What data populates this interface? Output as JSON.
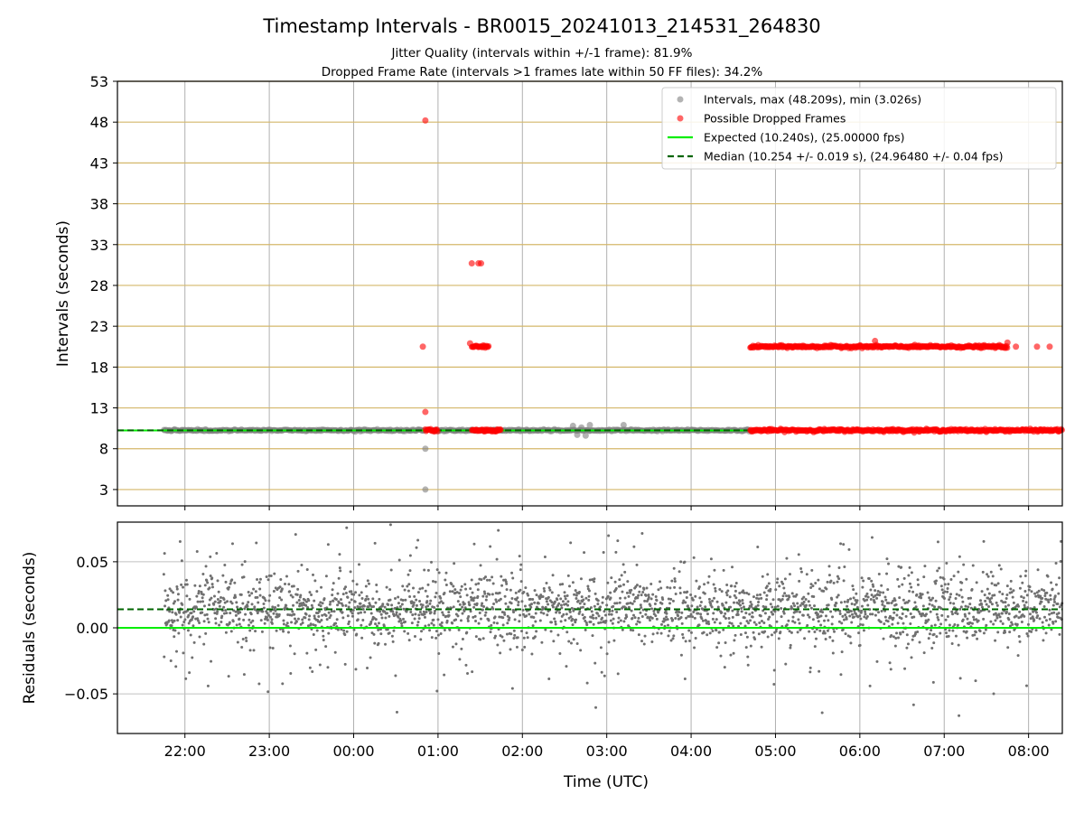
{
  "chart_data": [
    {
      "type": "scatter",
      "panel": "top",
      "title": "Timestamp Intervals - BR0015_20241013_214531_264830",
      "subtitle_lines": [
        "Jitter Quality (intervals within +/-1 frame): 81.9%",
        "Dropped Frame Rate (intervals >1 frames late within 50 FF files): 34.2%"
      ],
      "ylabel": "Intervals (seconds)",
      "xlabel": "",
      "xlim_hours": [
        21.2,
        32.4
      ],
      "ylim": [
        1,
        53
      ],
      "yticks": [
        3,
        8,
        13,
        18,
        23,
        28,
        33,
        38,
        43,
        48,
        53
      ],
      "xticks": [
        {
          "hour": 22,
          "label": "22:00"
        },
        {
          "hour": 23,
          "label": "23:00"
        },
        {
          "hour": 24,
          "label": "00:00"
        },
        {
          "hour": 25,
          "label": "01:00"
        },
        {
          "hour": 26,
          "label": "02:00"
        },
        {
          "hour": 27,
          "label": "03:00"
        },
        {
          "hour": 28,
          "label": "04:00"
        },
        {
          "hour": 29,
          "label": "05:00"
        },
        {
          "hour": 30,
          "label": "06:00"
        },
        {
          "hour": 31,
          "label": "07:00"
        },
        {
          "hour": 32,
          "label": "08:00"
        }
      ],
      "grid": true,
      "legend_position": "upper-right",
      "legend": [
        {
          "label": "Intervals, max (48.209s), min (3.026s)",
          "marker": "circle",
          "color": "#808080"
        },
        {
          "label": "Possible Dropped Frames",
          "marker": "circle",
          "color": "#ff0000"
        },
        {
          "label": "Expected (10.240s), (25.00000 fps)",
          "line": "solid",
          "color": "#00ee00"
        },
        {
          "label": "Median (10.254 +/- 0.019 s), (24.96480 +/- 0.04 fps)",
          "line": "dashed",
          "color": "#006400"
        }
      ],
      "expected_y": 10.24,
      "median_y": 10.254,
      "intervals_normal": {
        "color": "#808080",
        "band_y": 10.254,
        "ranges_hours": [
          [
            21.75,
            24.85
          ],
          [
            24.95,
            28.7
          ]
        ],
        "outliers": [
          {
            "x": 24.85,
            "y": 8.0
          },
          {
            "x": 24.85,
            "y": 3.0
          },
          {
            "x": 26.6,
            "y": 10.8
          },
          {
            "x": 26.7,
            "y": 10.6
          },
          {
            "x": 26.8,
            "y": 10.9
          },
          {
            "x": 27.2,
            "y": 10.9
          },
          {
            "x": 26.65,
            "y": 9.7
          },
          {
            "x": 26.75,
            "y": 9.6
          }
        ]
      },
      "dropped_frames": {
        "color": "#ff0000",
        "band_ranges": [
          {
            "from": 24.85,
            "to": 25.0,
            "y": 10.254
          },
          {
            "from": 25.4,
            "to": 25.75,
            "y": 10.254
          },
          {
            "from": 28.7,
            "to": 32.4,
            "y": 10.254
          },
          {
            "from": 25.4,
            "to": 25.6,
            "y": 20.5
          },
          {
            "from": 28.7,
            "to": 31.75,
            "y": 20.5
          }
        ],
        "points": [
          {
            "x": 24.85,
            "y": 48.2
          },
          {
            "x": 24.82,
            "y": 20.5
          },
          {
            "x": 24.85,
            "y": 12.5
          },
          {
            "x": 25.4,
            "y": 30.7
          },
          {
            "x": 25.48,
            "y": 30.7
          },
          {
            "x": 25.51,
            "y": 30.7
          },
          {
            "x": 25.38,
            "y": 20.9
          },
          {
            "x": 31.85,
            "y": 20.5
          },
          {
            "x": 32.1,
            "y": 20.5
          },
          {
            "x": 32.25,
            "y": 20.5
          },
          {
            "x": 31.75,
            "y": 21.0
          },
          {
            "x": 30.18,
            "y": 21.2
          }
        ]
      }
    },
    {
      "type": "scatter",
      "panel": "bottom",
      "title": "",
      "xlabel": "Time (UTC)",
      "ylabel": "Residuals (seconds)",
      "xlim_hours": [
        21.2,
        32.4
      ],
      "ylim": [
        -0.08,
        0.08
      ],
      "yticks": [
        {
          "value": 0.05,
          "label": "0.05"
        },
        {
          "value": 0.0,
          "label": "0.00"
        },
        {
          "value": -0.05,
          "label": "−0.05"
        }
      ],
      "grid": true,
      "expected_y": 0.0,
      "median_y": 0.014,
      "residuals": {
        "color": "#707070",
        "x_range_hours": [
          21.75,
          32.4
        ],
        "center": 0.014,
        "core_spread": 0.012,
        "outer_spread": 0.045
      }
    }
  ]
}
